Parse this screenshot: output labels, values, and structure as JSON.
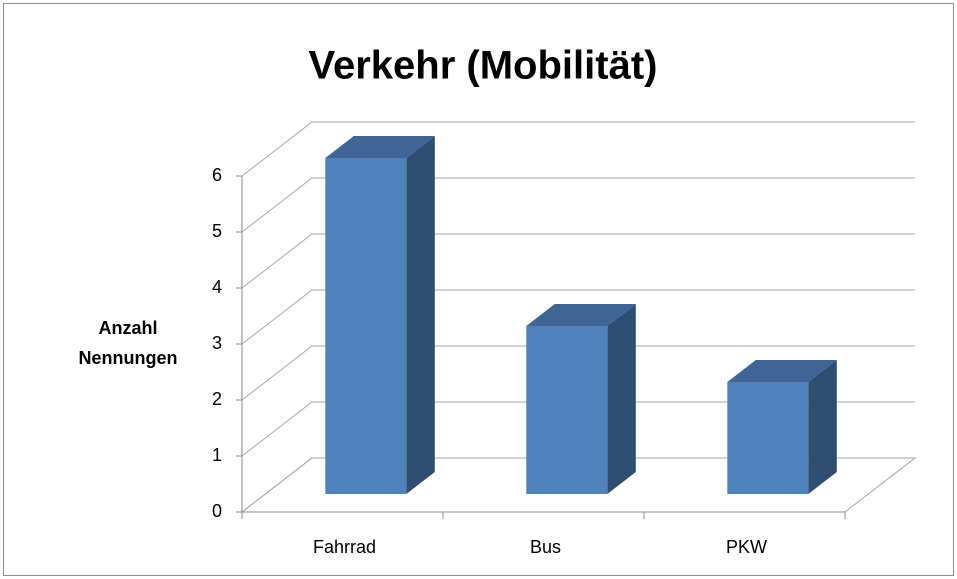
{
  "chart_data": {
    "type": "bar",
    "title": "Verkehr (Mobilität)",
    "y_label": "Anzahl Nennungen",
    "categories": [
      "Fahrrad",
      "Bus",
      "PKW"
    ],
    "values": [
      6,
      3,
      2
    ],
    "color": "#4f81bd",
    "ylim": [
      0,
      6
    ],
    "yticks": [
      0,
      1,
      2,
      3,
      4,
      5,
      6
    ],
    "grid": true
  }
}
